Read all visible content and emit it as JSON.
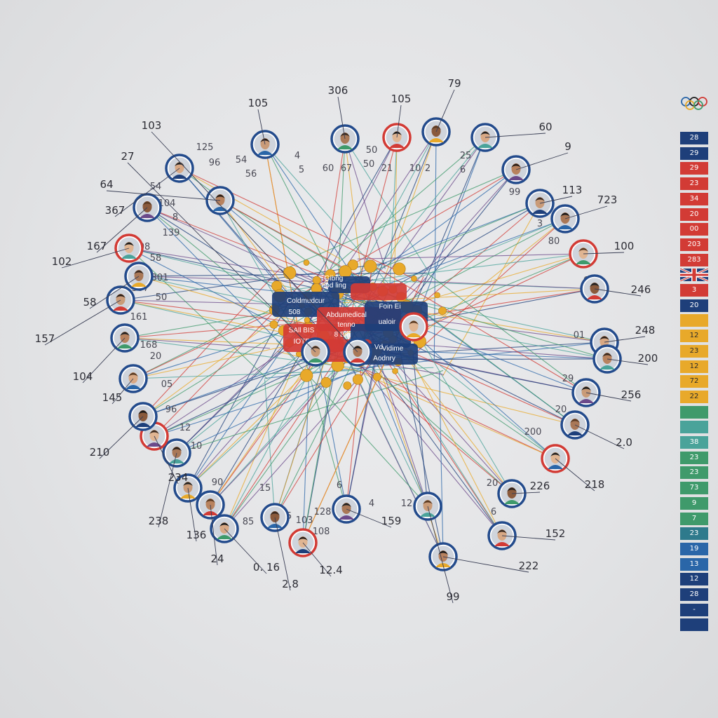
{
  "colors": {
    "navy": "#1e3f7a",
    "red": "#d23b35",
    "gold": "#e8a92a",
    "green": "#3f9a6b",
    "teal": "#4aa39a",
    "blue": "#2a66a8",
    "purple": "#6b4a8a",
    "ring": "#234b8c"
  },
  "hub": {
    "labels": [
      "Coldmudcur",
      "Abdumedical",
      "SAll BIS",
      "8 Bih",
      "Foin Ei",
      "Fod ling",
      "IOTF",
      "Uii",
      "Vd",
      "Vidime",
      "Aodnry",
      "tenno",
      "ualoir",
      "508",
      "Gibng"
    ]
  },
  "athletes": [
    {
      "name": "athlete-01",
      "value": "105"
    },
    {
      "name": "athlete-02",
      "value": "306"
    },
    {
      "name": "athlete-03",
      "value": "105"
    },
    {
      "name": "athlete-04",
      "value": "79"
    },
    {
      "name": "athlete-05",
      "value": "60"
    },
    {
      "name": "athlete-06",
      "value": "9"
    },
    {
      "name": "athlete-07",
      "value": "113"
    },
    {
      "name": "athlete-08",
      "value": "723"
    },
    {
      "name": "athlete-09",
      "value": "100"
    },
    {
      "name": "athlete-10",
      "value": "246"
    },
    {
      "name": "athlete-11",
      "value": "248"
    },
    {
      "name": "athlete-12",
      "value": "200"
    },
    {
      "name": "athlete-13",
      "value": "256"
    },
    {
      "name": "athlete-14",
      "value": "2.0"
    },
    {
      "name": "athlete-15",
      "value": "218"
    },
    {
      "name": "athlete-16",
      "value": "226"
    },
    {
      "name": "athlete-17",
      "value": "152"
    },
    {
      "name": "athlete-18",
      "value": "222"
    },
    {
      "name": "athlete-19",
      "value": "99"
    },
    {
      "name": "athlete-20",
      "value": "159"
    },
    {
      "name": "athlete-21",
      "value": "12.4"
    },
    {
      "name": "athlete-22",
      "value": "2.8"
    },
    {
      "name": "athlete-23",
      "value": "0. 16"
    },
    {
      "name": "athlete-24",
      "value": "24"
    },
    {
      "name": "athlete-25",
      "value": "136"
    },
    {
      "name": "athlete-26",
      "value": "238"
    },
    {
      "name": "athlete-27",
      "value": "234"
    },
    {
      "name": "athlete-28",
      "value": "210"
    },
    {
      "name": "athlete-29",
      "value": "145"
    },
    {
      "name": "athlete-30",
      "value": "104"
    },
    {
      "name": "athlete-31",
      "value": "157"
    },
    {
      "name": "athlete-32",
      "value": "58"
    },
    {
      "name": "athlete-33",
      "value": "102"
    },
    {
      "name": "athlete-34",
      "value": "167"
    },
    {
      "name": "athlete-35",
      "value": "367"
    },
    {
      "name": "athlete-36",
      "value": "64"
    },
    {
      "name": "athlete-37",
      "value": "27"
    },
    {
      "name": "athlete-38",
      "value": "103"
    }
  ],
  "inner_labels": [
    "125",
    "96",
    "54",
    "54",
    "56",
    "4",
    "5",
    "6",
    "7",
    "60",
    "50",
    "50",
    "21",
    "10",
    "2",
    "25",
    "6",
    "99",
    "28",
    "3",
    "80",
    "62",
    "01",
    "29",
    "20",
    "200",
    "20",
    "6",
    "1",
    "08",
    "58",
    "307",
    "301",
    "161",
    "168",
    "20",
    "05",
    "96",
    "10",
    "90",
    "15",
    "85",
    "128",
    "6",
    "4",
    "12",
    "35",
    "103",
    "108",
    "104",
    "8",
    "139",
    "50",
    "12"
  ],
  "legend": {
    "keys": [
      {
        "label": "28",
        "color": "#1e3f7a"
      },
      {
        "label": "29",
        "color": "#1e3f7a"
      },
      {
        "label": "29",
        "color": "#d23b35"
      },
      {
        "label": "23",
        "color": "#d23b35"
      },
      {
        "label": "34",
        "color": "#d23b35"
      },
      {
        "label": "20",
        "color": "#d23b35"
      },
      {
        "label": "00",
        "color": "#d23b35"
      },
      {
        "label": "203",
        "color": "#d23b35"
      },
      {
        "label": "283",
        "color": "#d23b35"
      },
      {
        "label": "",
        "color": "flag"
      },
      {
        "label": "3",
        "color": "#d23b35"
      },
      {
        "label": "20",
        "color": "#1e3f7a"
      },
      {
        "label": "",
        "color": "#e8a92a"
      },
      {
        "label": "12",
        "color": "#e8a92a"
      },
      {
        "label": "23",
        "color": "#e8a92a"
      },
      {
        "label": "12",
        "color": "#e8a92a"
      },
      {
        "label": "72",
        "color": "#e8a92a"
      },
      {
        "label": "22",
        "color": "#e8a92a"
      },
      {
        "label": "",
        "color": "#3f9a6b"
      },
      {
        "label": "",
        "color": "#4aa39a"
      },
      {
        "label": "38",
        "color": "#4aa39a"
      },
      {
        "label": "23",
        "color": "#3f9a6b"
      },
      {
        "label": "23",
        "color": "#3f9a6b"
      },
      {
        "label": "73",
        "color": "#3f9a6b"
      },
      {
        "label": "9",
        "color": "#3f9a6b"
      },
      {
        "label": "7",
        "color": "#3f9a6b"
      },
      {
        "label": "23",
        "color": "#2e7a8c"
      },
      {
        "label": "19",
        "color": "#2a66a8"
      },
      {
        "label": "13",
        "color": "#2a66a8"
      },
      {
        "label": "12",
        "color": "#1e3f7a"
      },
      {
        "label": "28",
        "color": "#1e3f7a"
      },
      {
        "label": "-",
        "color": "#1e3f7a"
      },
      {
        "label": "",
        "color": "#1e3f7a"
      }
    ]
  }
}
